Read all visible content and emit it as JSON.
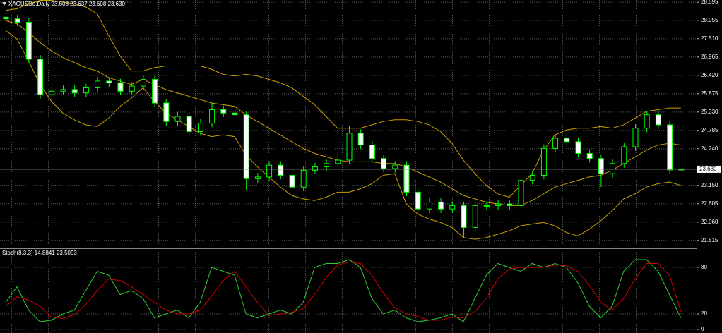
{
  "chart_data": [
    {
      "type": "candlestick",
      "title": "XAGUSDe,Daily  23.608 23.637 23.608 23.630",
      "open": [
        28.15,
        28.1,
        28.0,
        26.9,
        25.85,
        25.95,
        26.0,
        25.9,
        26.05,
        26.25,
        26.2,
        25.95,
        26.1,
        26.3,
        25.6,
        25.05,
        25.2,
        24.75,
        25.0,
        25.4,
        25.3,
        25.25,
        23.35,
        23.4,
        23.75,
        23.45,
        23.1,
        23.6,
        23.7,
        23.8,
        23.9,
        24.7,
        24.35,
        23.95,
        23.65,
        23.75,
        22.95,
        22.45,
        22.65,
        22.45,
        22.55,
        21.9,
        22.55,
        22.55,
        22.6,
        22.55,
        23.3,
        23.45,
        24.25,
        24.55,
        24.45,
        24.1,
        23.95,
        23.5,
        23.8,
        24.3,
        24.85,
        25.25,
        24.95,
        23.608
      ],
      "high": [
        28.27,
        28.22,
        28.12,
        27.02,
        26.07,
        26.12,
        26.12,
        26.17,
        26.37,
        26.37,
        26.32,
        26.22,
        26.42,
        26.42,
        25.72,
        25.32,
        25.32,
        25.12,
        25.62,
        25.52,
        25.42,
        25.37,
        23.52,
        23.87,
        23.87,
        23.57,
        23.72,
        23.82,
        23.92,
        24.12,
        24.92,
        24.82,
        24.47,
        24.07,
        23.87,
        23.87,
        23.07,
        22.77,
        22.77,
        22.67,
        22.67,
        22.67,
        22.67,
        22.72,
        22.72,
        23.42,
        23.57,
        24.37,
        24.67,
        24.67,
        24.57,
        24.22,
        24.07,
        23.92,
        24.42,
        24.97,
        25.37,
        25.37,
        25.07,
        23.637
      ],
      "low": [
        27.98,
        27.88,
        26.78,
        25.73,
        25.73,
        25.83,
        25.78,
        25.78,
        25.93,
        26.08,
        25.83,
        25.83,
        25.98,
        25.48,
        24.93,
        24.93,
        24.63,
        24.63,
        24.88,
        25.18,
        25.13,
        23.0,
        23.23,
        23.28,
        23.33,
        22.98,
        22.98,
        23.48,
        23.58,
        23.68,
        23.78,
        24.23,
        23.83,
        23.53,
        23.53,
        22.83,
        22.33,
        22.33,
        22.33,
        22.33,
        21.6,
        21.78,
        22.43,
        22.43,
        22.43,
        22.43,
        23.18,
        23.33,
        24.13,
        24.33,
        23.98,
        23.83,
        23.1,
        23.38,
        23.68,
        24.18,
        24.73,
        24.83,
        23.49,
        23.608
      ],
      "close": [
        28.1,
        28.0,
        26.9,
        25.85,
        25.95,
        26.0,
        25.9,
        26.05,
        26.25,
        26.2,
        25.95,
        26.1,
        26.3,
        25.6,
        25.05,
        25.2,
        24.75,
        25.0,
        25.4,
        25.3,
        25.25,
        23.35,
        23.4,
        23.75,
        23.45,
        23.1,
        23.6,
        23.7,
        23.8,
        23.9,
        24.7,
        24.35,
        23.95,
        23.65,
        23.75,
        22.95,
        22.45,
        22.65,
        22.45,
        22.55,
        21.9,
        22.55,
        22.55,
        22.6,
        22.55,
        23.3,
        23.45,
        24.25,
        24.55,
        24.45,
        24.1,
        23.95,
        23.5,
        23.8,
        24.3,
        24.85,
        25.25,
        24.95,
        23.61,
        23.63
      ],
      "up_color": "#000000",
      "down_color": "#ffffff",
      "wick_color": "#00ff00",
      "bands": {
        "color": "#c8a000",
        "upper": [
          28.35,
          28.4,
          28.55,
          28.65,
          28.65,
          28.6,
          28.55,
          28.45,
          28.25,
          27.6,
          27.0,
          26.55,
          26.55,
          26.65,
          26.7,
          26.7,
          26.7,
          26.7,
          26.6,
          26.45,
          26.4,
          26.45,
          26.4,
          26.3,
          26.2,
          26.05,
          25.8,
          25.55,
          25.2,
          24.85,
          24.85,
          24.85,
          24.95,
          25.05,
          25.1,
          25.1,
          25.05,
          24.95,
          24.75,
          24.4,
          23.9,
          23.5,
          23.15,
          22.9,
          22.8,
          23.15,
          23.5,
          24.2,
          24.65,
          24.8,
          24.85,
          24.85,
          24.9,
          24.85,
          24.95,
          25.15,
          25.35,
          25.4,
          25.45,
          25.45
        ],
        "middle": [
          28.05,
          27.95,
          27.7,
          27.4,
          27.15,
          26.95,
          26.8,
          26.65,
          26.55,
          26.35,
          26.25,
          26.15,
          26.3,
          26.15,
          26.0,
          25.9,
          25.8,
          25.7,
          25.6,
          25.55,
          25.5,
          25.25,
          25.05,
          24.85,
          24.65,
          24.45,
          24.25,
          24.1,
          24.0,
          23.9,
          23.85,
          23.85,
          23.85,
          23.8,
          23.8,
          23.7,
          23.55,
          23.4,
          23.25,
          23.05,
          22.85,
          22.75,
          22.65,
          22.6,
          22.55,
          22.55,
          22.7,
          22.9,
          23.1,
          23.2,
          23.3,
          23.4,
          23.45,
          23.6,
          23.8,
          24.0,
          24.2,
          24.35,
          24.4,
          24.35
        ],
        "lower": [
          27.75,
          27.5,
          26.85,
          26.15,
          25.65,
          25.3,
          25.1,
          24.95,
          24.9,
          25.15,
          25.5,
          25.75,
          26.05,
          25.65,
          25.3,
          25.1,
          24.9,
          24.7,
          24.6,
          24.65,
          24.6,
          24.05,
          23.7,
          23.4,
          23.1,
          22.85,
          22.75,
          22.7,
          22.8,
          22.95,
          22.95,
          23.05,
          23.2,
          23.45,
          23.5,
          22.6,
          22.3,
          22.15,
          22.05,
          21.9,
          21.6,
          21.55,
          21.6,
          21.7,
          21.8,
          21.95,
          22.0,
          22.05,
          21.95,
          21.75,
          21.65,
          21.85,
          22.1,
          22.4,
          22.75,
          22.9,
          23.1,
          23.2,
          23.25,
          23.15
        ]
      },
      "last_price": {
        "value": 23.63,
        "label": "23.630"
      },
      "ylim": [
        21.28,
        28.66
      ],
      "yticks": [
        28.595,
        28.055,
        {
          "value": 27.51,
          "label": "27.510"
        },
        26.965,
        {
          "value": 26.42,
          "label": "26.420"
        },
        25.875,
        {
          "value": 25.33,
          "label": "25.330"
        },
        24.785,
        {
          "value": 24.24,
          "label": "24.240"
        },
        {
          "value": 23.15,
          "label": "23.150"
        },
        22.605,
        {
          "value": 22.06,
          "label": "22.060"
        },
        21.515
      ],
      "grid": true
    },
    {
      "type": "line",
      "title": "Stoch(8,3,3) 14.8841 23.5093",
      "series": [
        {
          "color": "#32cd32",
          "values": [
            35,
            55,
            25,
            10,
            12,
            20,
            25,
            50,
            75,
            70,
            45,
            50,
            40,
            15,
            20,
            25,
            15,
            35,
            80,
            75,
            70,
            20,
            15,
            20,
            25,
            20,
            35,
            80,
            85,
            85,
            90,
            80,
            40,
            20,
            25,
            15,
            10,
            12,
            15,
            20,
            10,
            40,
            70,
            85,
            80,
            75,
            85,
            80,
            85,
            80,
            60,
            30,
            15,
            30,
            75,
            90,
            90,
            75,
            45,
            14.8841
          ]
        },
        {
          "color": "#d00000",
          "values": [
            30,
            42,
            38,
            30,
            16,
            14,
            19,
            32,
            50,
            65,
            63,
            55,
            45,
            35,
            25,
            20,
            20,
            25,
            43,
            63,
            75,
            55,
            35,
            18,
            20,
            22,
            27,
            45,
            67,
            83,
            87,
            85,
            70,
            47,
            28,
            20,
            17,
            12,
            12,
            16,
            15,
            23,
            40,
            65,
            78,
            80,
            80,
            80,
            83,
            82,
            75,
            57,
            35,
            25,
            40,
            65,
            85,
            85,
            70,
            23.5093
          ]
        }
      ],
      "ylim": [
        -4.5,
        102.7
      ],
      "yticks": [
        80,
        20,
        0
      ],
      "grid": true
    }
  ]
}
